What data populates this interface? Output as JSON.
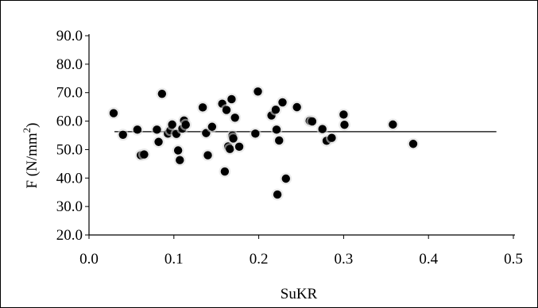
{
  "chart_data": {
    "type": "scatter",
    "title": "",
    "xlabel": "SuKR",
    "ylabel_main": "F (N/mm",
    "ylabel_sup": "2",
    "ylabel_tail": ")",
    "xlim": [
      0,
      0.5
    ],
    "ylim": [
      20,
      90
    ],
    "x_ticks": [
      0.0,
      0.1,
      0.2,
      0.3,
      0.4,
      0.5
    ],
    "x_tick_labels": [
      "0.0",
      "0.1",
      "0.2",
      "0.3",
      "0.4",
      "0.5"
    ],
    "y_ticks": [
      20,
      30,
      40,
      50,
      60,
      70,
      80,
      90
    ],
    "y_tick_labels": [
      "20.0",
      "30.0",
      "40.0",
      "50.0",
      "60.0",
      "70.0",
      "80.0",
      "90.0"
    ],
    "grid": false,
    "legend": "none",
    "mean_line": {
      "y": 56.3,
      "x_range": [
        0.03,
        0.48
      ]
    },
    "points": [
      {
        "x": 0.029,
        "y": 62.8
      },
      {
        "x": 0.04,
        "y": 55.2
      },
      {
        "x": 0.057,
        "y": 57.0
      },
      {
        "x": 0.061,
        "y": 48.0
      },
      {
        "x": 0.065,
        "y": 48.3
      },
      {
        "x": 0.08,
        "y": 57.0
      },
      {
        "x": 0.082,
        "y": 52.7
      },
      {
        "x": 0.086,
        "y": 69.6
      },
      {
        "x": 0.093,
        "y": 55.6
      },
      {
        "x": 0.096,
        "y": 56.8
      },
      {
        "x": 0.098,
        "y": 58.8
      },
      {
        "x": 0.103,
        "y": 55.5
      },
      {
        "x": 0.105,
        "y": 49.7
      },
      {
        "x": 0.107,
        "y": 46.3
      },
      {
        "x": 0.11,
        "y": 57.4
      },
      {
        "x": 0.112,
        "y": 60.2
      },
      {
        "x": 0.114,
        "y": 58.7
      },
      {
        "x": 0.134,
        "y": 64.8
      },
      {
        "x": 0.138,
        "y": 55.8
      },
      {
        "x": 0.14,
        "y": 48.0
      },
      {
        "x": 0.145,
        "y": 58.0
      },
      {
        "x": 0.157,
        "y": 66.1
      },
      {
        "x": 0.16,
        "y": 42.3
      },
      {
        "x": 0.162,
        "y": 63.9
      },
      {
        "x": 0.164,
        "y": 51.1
      },
      {
        "x": 0.166,
        "y": 50.2
      },
      {
        "x": 0.168,
        "y": 67.7
      },
      {
        "x": 0.169,
        "y": 54.9
      },
      {
        "x": 0.17,
        "y": 53.9
      },
      {
        "x": 0.172,
        "y": 61.2
      },
      {
        "x": 0.177,
        "y": 51.0
      },
      {
        "x": 0.199,
        "y": 70.4
      },
      {
        "x": 0.196,
        "y": 55.6
      },
      {
        "x": 0.215,
        "y": 62.0
      },
      {
        "x": 0.22,
        "y": 64.0
      },
      {
        "x": 0.221,
        "y": 57.0
      },
      {
        "x": 0.222,
        "y": 34.2
      },
      {
        "x": 0.224,
        "y": 53.2
      },
      {
        "x": 0.228,
        "y": 66.6
      },
      {
        "x": 0.232,
        "y": 39.8
      },
      {
        "x": 0.245,
        "y": 64.9
      },
      {
        "x": 0.26,
        "y": 60.1
      },
      {
        "x": 0.263,
        "y": 59.9
      },
      {
        "x": 0.275,
        "y": 57.2
      },
      {
        "x": 0.28,
        "y": 53.1
      },
      {
        "x": 0.286,
        "y": 54.1
      },
      {
        "x": 0.3,
        "y": 62.3
      },
      {
        "x": 0.301,
        "y": 58.7
      },
      {
        "x": 0.358,
        "y": 58.8
      },
      {
        "x": 0.382,
        "y": 52.0
      }
    ],
    "colors": {
      "point": "#000000",
      "line": "#000000",
      "halo": "#d8d8d8"
    }
  }
}
